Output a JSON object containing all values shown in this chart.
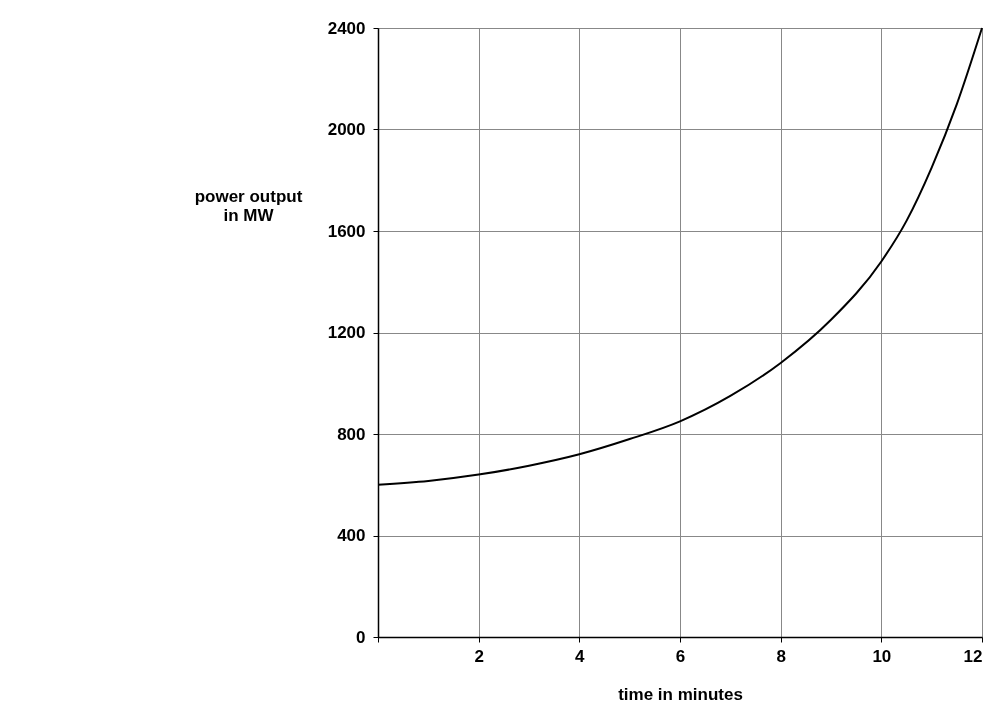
{
  "chart_data": {
    "type": "line",
    "xlabel": "time in minutes",
    "ylabel": "power output\nin MW",
    "x": [
      0,
      1,
      2,
      3,
      4,
      5,
      6,
      7,
      8,
      9,
      10,
      10.5,
      11,
      11.5,
      12
    ],
    "series": [
      {
        "color": "#000000",
        "values": [
          600,
          615,
          640,
          675,
          720,
          780,
          850,
          950,
          1080,
          1250,
          1480,
          1640,
          1850,
          2100,
          2400
        ]
      }
    ],
    "xlim": [
      0,
      12
    ],
    "xticks": [
      {
        "value": 0,
        "label": null
      },
      2,
      4,
      6,
      8,
      10,
      12
    ],
    "ylim": [
      0,
      2400
    ],
    "yticks": [
      0,
      400,
      800,
      1200,
      1600,
      2000,
      2400
    ],
    "grid": true,
    "marker": "none",
    "line_style": "solid"
  }
}
